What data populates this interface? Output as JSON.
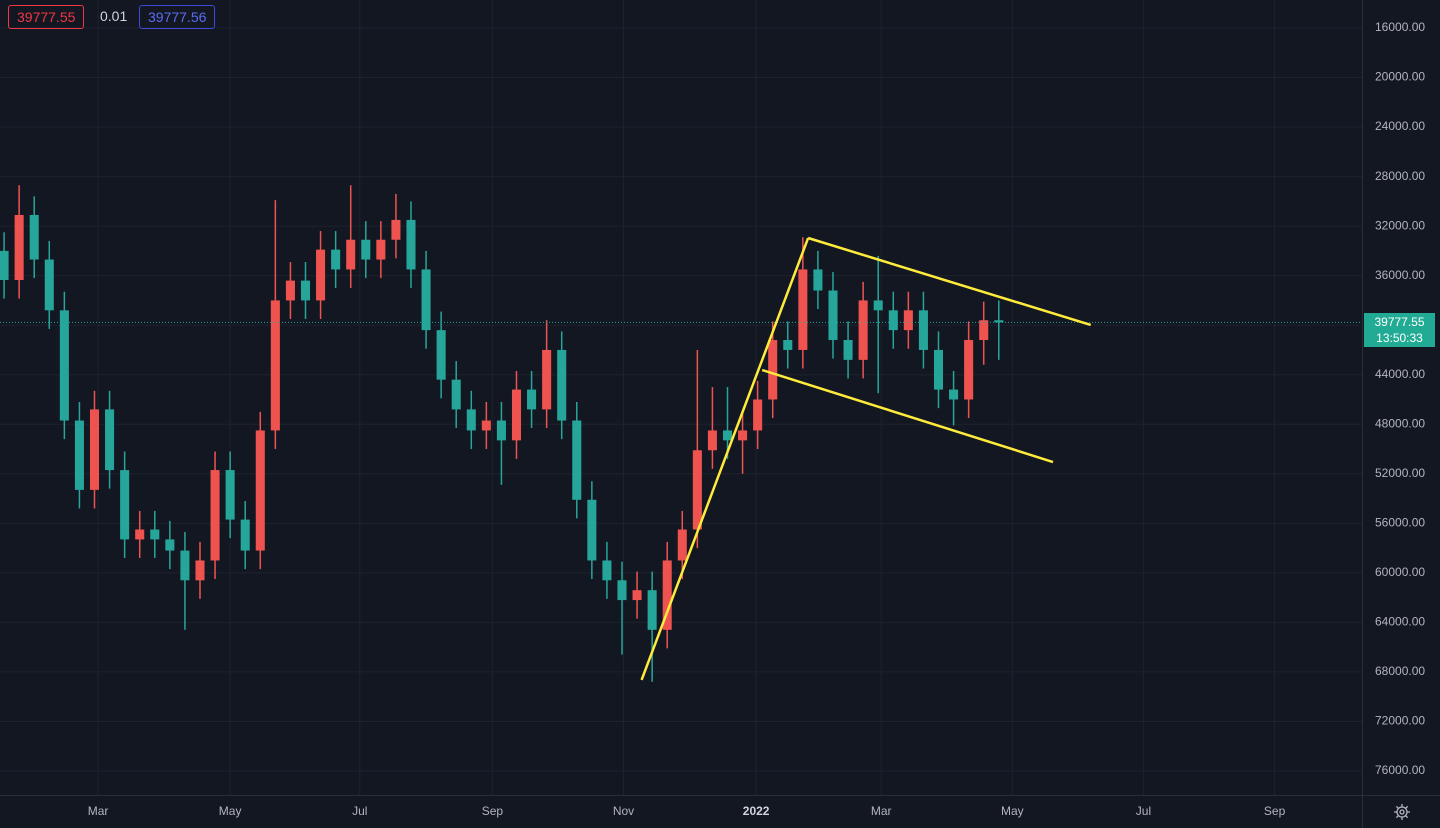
{
  "quote": {
    "bid": 39777.55,
    "spread": 0.01,
    "ask": 39777.56
  },
  "clock": "13:50:33",
  "chart_data": {
    "type": "candlestick",
    "inverted": true,
    "grid": true,
    "up_color": "#26a69a",
    "down_color": "#ef5350",
    "categories": [
      null,
      null,
      null,
      null,
      null,
      null,
      null,
      null,
      null,
      null,
      null,
      null,
      null,
      null,
      null,
      null,
      null,
      null,
      null,
      null,
      null,
      null,
      null,
      null,
      null,
      null,
      null,
      null,
      null,
      null,
      null,
      null,
      null,
      null,
      null,
      null,
      null,
      null,
      null,
      null,
      null,
      null,
      null,
      null,
      null,
      null,
      null,
      null,
      null,
      null,
      null,
      null,
      null,
      null,
      null,
      null,
      null,
      null,
      null,
      null,
      null,
      null,
      null,
      null,
      null,
      null,
      null
    ],
    "open": [
      34000,
      36350,
      31100,
      34700,
      38800,
      47700,
      53300,
      46800,
      51700,
      57300,
      56500,
      57300,
      58200,
      60600,
      59000,
      51700,
      55700,
      58200,
      48500,
      38000,
      36400,
      38000,
      33900,
      35500,
      33100,
      34700,
      33100,
      31500,
      35500,
      40400,
      44400,
      46800,
      48500,
      47700,
      49300,
      45200,
      46800,
      42000,
      47700,
      54100,
      59000,
      60600,
      62200,
      61400,
      64600,
      59000,
      56500,
      50100,
      48500,
      49300,
      48500,
      46000,
      41200,
      42000,
      35500,
      37200,
      41200,
      42800,
      38000,
      38800,
      40400,
      38800,
      42000,
      45200,
      46000,
      41200,
      39600
    ],
    "high": [
      37850,
      37850,
      36200,
      40300,
      49200,
      54800,
      54800,
      53200,
      58800,
      58800,
      58800,
      59700,
      64600,
      62100,
      60500,
      57200,
      59700,
      59700,
      50000,
      39500,
      39500,
      39500,
      37000,
      37000,
      36200,
      36200,
      34600,
      37000,
      41900,
      45900,
      48300,
      50000,
      50000,
      52900,
      50800,
      48300,
      48300,
      49200,
      55600,
      60500,
      62100,
      66600,
      63700,
      68800,
      66100,
      60500,
      58000,
      51600,
      50800,
      52000,
      50000,
      47500,
      43500,
      43500,
      38700,
      42700,
      44300,
      44300,
      45500,
      41900,
      41900,
      43500,
      46700,
      48100,
      47500,
      43200,
      42800
    ],
    "low": [
      32500,
      28700,
      29600,
      33200,
      37300,
      46200,
      45300,
      45300,
      50200,
      55000,
      55000,
      55800,
      56700,
      57500,
      50200,
      50200,
      54200,
      47000,
      29900,
      34900,
      34900,
      32400,
      32400,
      28700,
      31600,
      31600,
      29400,
      30000,
      34000,
      38900,
      42900,
      45300,
      46200,
      46200,
      43700,
      43700,
      39600,
      40500,
      46200,
      52600,
      57500,
      59100,
      59900,
      59900,
      57500,
      55000,
      42000,
      45000,
      45000,
      47000,
      44500,
      39700,
      39700,
      32900,
      34000,
      35700,
      39700,
      36500,
      34400,
      37300,
      37300,
      37300,
      40500,
      43700,
      39700,
      38100,
      38000
    ],
    "close": [
      36350,
      31100,
      34700,
      38800,
      47700,
      53300,
      46800,
      51700,
      57300,
      56500,
      57300,
      58200,
      60600,
      59000,
      51700,
      55700,
      58200,
      48500,
      38000,
      36400,
      38000,
      33900,
      35500,
      33100,
      34700,
      33100,
      31500,
      35500,
      40400,
      44400,
      46800,
      48500,
      47700,
      49300,
      45200,
      46800,
      42000,
      47700,
      54100,
      59000,
      60600,
      62200,
      61400,
      64600,
      59000,
      56500,
      50100,
      48500,
      49300,
      48500,
      46000,
      41200,
      42000,
      35500,
      37200,
      41200,
      42800,
      38000,
      38800,
      40400,
      38800,
      42000,
      45200,
      46000,
      41200,
      39600,
      39777.55
    ],
    "xlim": [
      -0.27,
      90.1
    ],
    "xticks": [
      {
        "value": 6.24,
        "label": "Mar"
      },
      {
        "value": 15,
        "label": "May"
      },
      {
        "value": 23.6,
        "label": "Jul"
      },
      {
        "value": 32.4,
        "label": "Sep"
      },
      {
        "value": 41.1,
        "label": "Nov"
      },
      {
        "value": 49.9,
        "label": "2022"
      },
      {
        "value": 58.2,
        "label": "Mar"
      },
      {
        "value": 66.9,
        "label": "May"
      },
      {
        "value": 75.6,
        "label": "Jul"
      },
      {
        "value": 84.3,
        "label": "Sep"
      }
    ],
    "ylim": [
      13740,
      77940
    ],
    "yticks": [
      {
        "value": 16000,
        "label": "16000.00"
      },
      {
        "value": 20000,
        "label": "20000.00"
      },
      {
        "value": 24000,
        "label": "24000.00"
      },
      {
        "value": 28000,
        "label": "28000.00"
      },
      {
        "value": 32000,
        "label": "32000.00"
      },
      {
        "value": 36000,
        "label": "36000.00"
      },
      {
        "value": 40000,
        "label": "40000.00"
      },
      {
        "value": 44000,
        "label": "44000.00"
      },
      {
        "value": 48000,
        "label": "48000.00"
      },
      {
        "value": 52000,
        "label": "52000.00"
      },
      {
        "value": 56000,
        "label": "56000.00"
      },
      {
        "value": 60000,
        "label": "60000.00"
      },
      {
        "value": 64000,
        "label": "64000.00"
      },
      {
        "value": 68000,
        "label": "68000.00"
      },
      {
        "value": 72000,
        "label": "72000.00"
      },
      {
        "value": 76000,
        "label": "76000.00"
      }
    ],
    "trend_color": "#ffeb3b",
    "trend_lines": [
      {
        "x": [
          42.3,
          53.35
        ],
        "y": [
          68650,
          32960
        ]
      },
      {
        "x": [
          53.35,
          72.1
        ],
        "y": [
          32960,
          39980
        ]
      },
      {
        "x": [
          50.3,
          69.6
        ],
        "y": [
          43620,
          51050
        ]
      }
    ]
  }
}
